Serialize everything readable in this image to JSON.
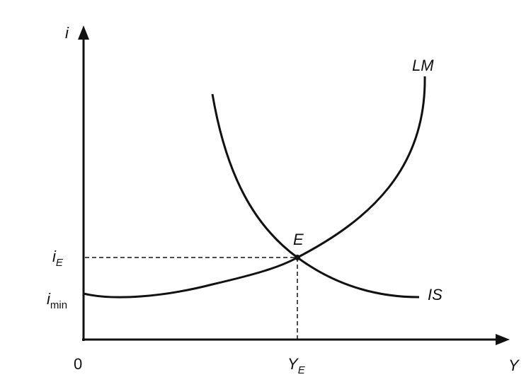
{
  "axes": {
    "y_label": "i",
    "x_label": "Y",
    "origin": "0"
  },
  "curves": {
    "lm": "LM",
    "is": "IS"
  },
  "equilibrium": {
    "label": "E",
    "interest": {
      "base": "i",
      "sub": "E"
    },
    "income": {
      "base": "Y",
      "sub": "E"
    }
  },
  "minimum_interest": {
    "base": "i",
    "sub": "min"
  }
}
